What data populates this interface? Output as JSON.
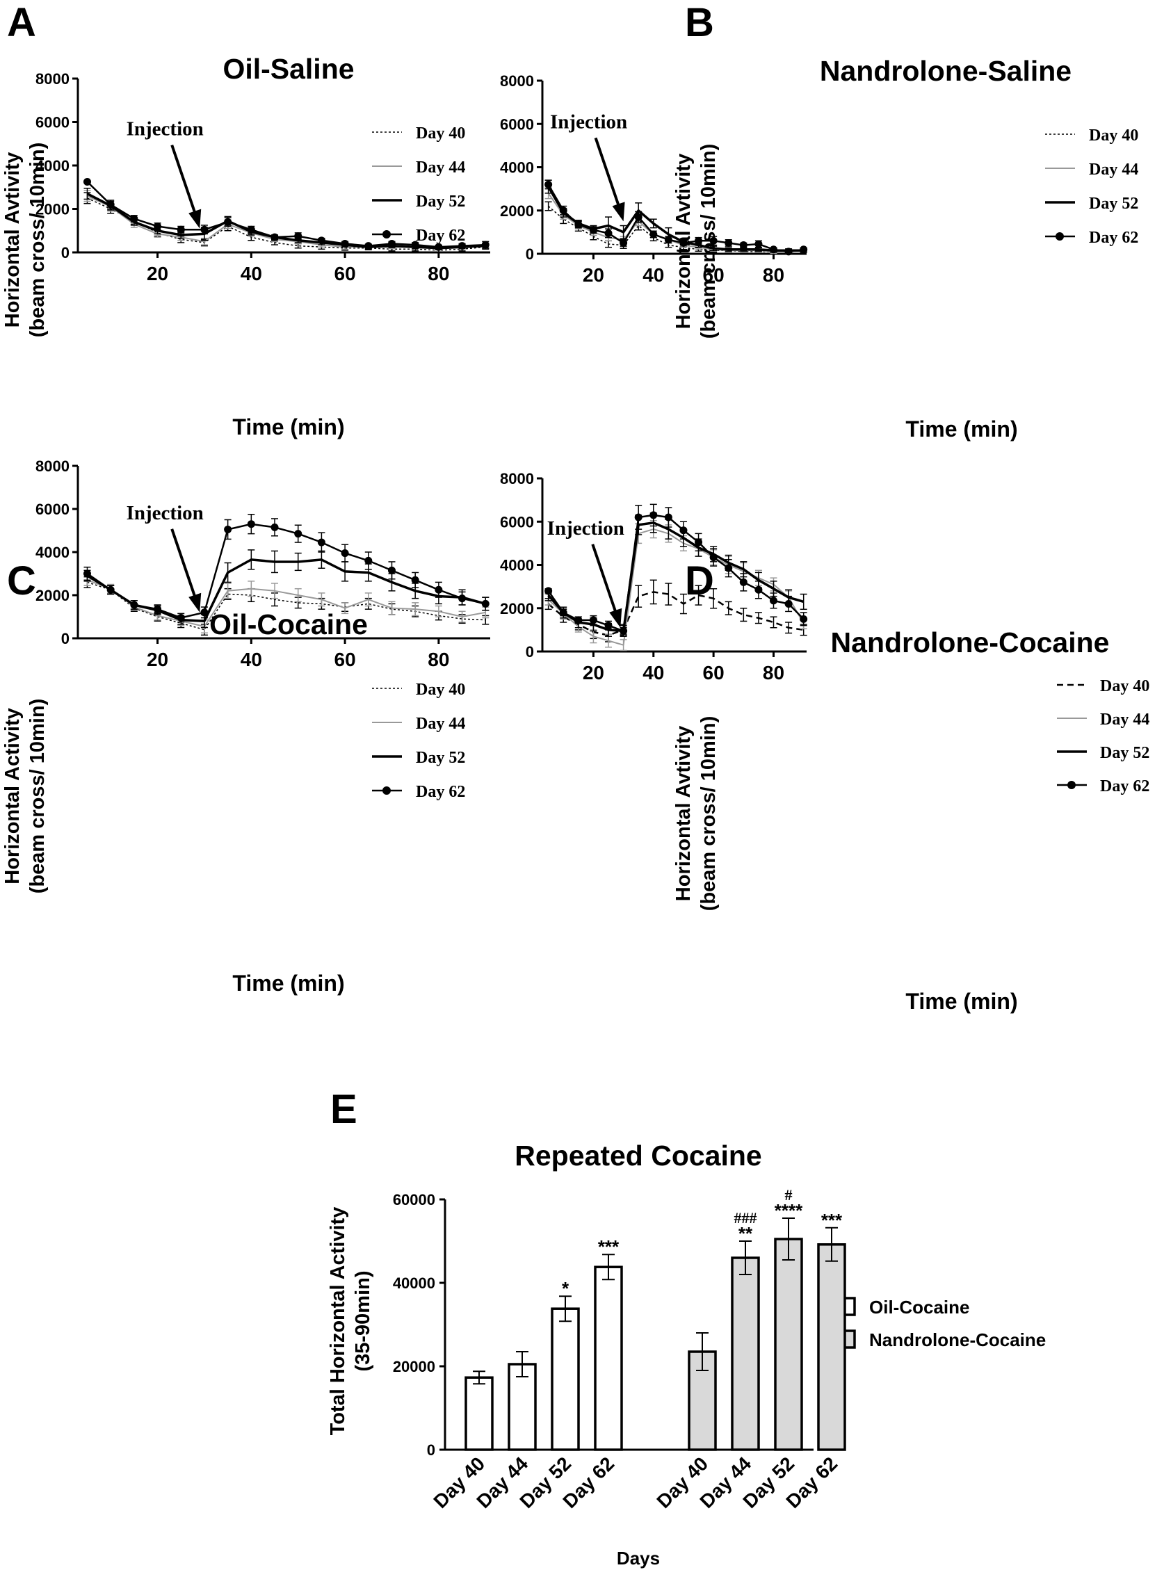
{
  "chart_data": [
    {
      "id": "A",
      "type": "line",
      "panel_letter": "A",
      "title": "Oil-Saline",
      "ylabel_line1": "Horizontal Avtivity",
      "ylabel_line2": "(beam cross/ 10min)",
      "xlabel": "Time (min)",
      "xlim": [
        3,
        91
      ],
      "ylim": [
        0,
        8000
      ],
      "yticks": [
        0,
        2000,
        4000,
        6000,
        8000
      ],
      "xticks": [
        20,
        40,
        60,
        80
      ],
      "x": [
        5,
        10,
        15,
        20,
        25,
        30,
        35,
        40,
        45,
        50,
        55,
        60,
        65,
        70,
        75,
        80,
        85,
        90
      ],
      "annotation": {
        "text": "Injection",
        "x": 29,
        "y": 1100
      },
      "series": [
        {
          "name": "Day 40",
          "style": "dotted",
          "values": [
            2500,
            2000,
            1450,
            900,
            600,
            450,
            1200,
            700,
            450,
            300,
            250,
            200,
            200,
            150,
            150,
            100,
            150,
            250
          ],
          "err": [
            250,
            200,
            150,
            150,
            150,
            150,
            200,
            150,
            100,
            100,
            100,
            100,
            80,
            80,
            80,
            80,
            80,
            100
          ]
        },
        {
          "name": "Day 44",
          "style": "gray",
          "values": [
            2600,
            2100,
            1300,
            850,
            700,
            500,
            1300,
            900,
            600,
            500,
            350,
            250,
            250,
            250,
            250,
            200,
            250,
            300
          ],
          "err": [
            250,
            200,
            150,
            150,
            150,
            150,
            200,
            150,
            100,
            100,
            100,
            100,
            80,
            80,
            80,
            80,
            80,
            100
          ]
        },
        {
          "name": "Day 52",
          "style": "thick",
          "values": [
            2700,
            2150,
            1400,
            1000,
            800,
            850,
            1450,
            950,
            700,
            550,
            450,
            350,
            250,
            300,
            250,
            200,
            250,
            300
          ],
          "err": [
            250,
            200,
            150,
            150,
            150,
            300,
            200,
            150,
            100,
            100,
            100,
            100,
            80,
            80,
            80,
            80,
            80,
            100
          ]
        },
        {
          "name": "Day 62",
          "style": "dots",
          "values": [
            3250,
            2200,
            1550,
            1200,
            1050,
            1050,
            1400,
            1050,
            700,
            750,
            550,
            400,
            300,
            400,
            350,
            250,
            300,
            350
          ],
          "err": [
            0,
            200,
            150,
            150,
            150,
            200,
            200,
            150,
            100,
            150,
            100,
            100,
            80,
            100,
            100,
            80,
            100,
            150
          ]
        }
      ]
    },
    {
      "id": "B",
      "type": "line",
      "panel_letter": "B",
      "title": "Nandrolone-Saline",
      "ylabel_line1": "Horizontal Avtivity",
      "ylabel_line2": "(beam cross/ 10min)",
      "xlabel": "Time (min)",
      "xlim": [
        3,
        91
      ],
      "ylim": [
        0,
        8000
      ],
      "yticks": [
        0,
        2000,
        4000,
        6000,
        8000
      ],
      "xticks": [
        20,
        40,
        60,
        80
      ],
      "x": [
        5,
        10,
        15,
        20,
        25,
        30,
        35,
        40,
        45,
        50,
        55,
        60,
        65,
        70,
        75,
        80,
        85,
        90
      ],
      "annotation": {
        "text": "Injection",
        "x": 30,
        "y": 1500
      },
      "series": [
        {
          "name": "Day 40",
          "style": "dotted",
          "values": [
            2200,
            1600,
            1200,
            800,
            450,
            400,
            1300,
            750,
            400,
            300,
            200,
            150,
            150,
            100,
            100,
            100,
            100,
            150
          ],
          "err": [
            200,
            200,
            150,
            150,
            150,
            150,
            200,
            150,
            100,
            100,
            80,
            80,
            80,
            80,
            80,
            80,
            80,
            80
          ]
        },
        {
          "name": "Day 44",
          "style": "gray",
          "values": [
            2800,
            1800,
            1300,
            1000,
            750,
            650,
            1500,
            900,
            650,
            400,
            300,
            200,
            150,
            150,
            150,
            100,
            100,
            150
          ],
          "err": [
            250,
            200,
            150,
            150,
            150,
            150,
            200,
            150,
            100,
            100,
            80,
            80,
            80,
            80,
            80,
            80,
            80,
            80
          ]
        },
        {
          "name": "Day 52",
          "style": "thick",
          "values": [
            3100,
            1900,
            1400,
            1150,
            1300,
            1000,
            2000,
            1400,
            900,
            550,
            400,
            250,
            200,
            200,
            200,
            150,
            150,
            150
          ],
          "err": [
            300,
            200,
            150,
            150,
            400,
            300,
            350,
            200,
            300,
            150,
            100,
            100,
            80,
            80,
            80,
            80,
            80,
            80
          ]
        },
        {
          "name": "Day 62",
          "style": "dots",
          "values": [
            3200,
            2000,
            1350,
            1100,
            950,
            500,
            1700,
            900,
            650,
            500,
            600,
            600,
            500,
            400,
            450,
            200,
            100,
            200
          ],
          "err": [
            200,
            200,
            150,
            150,
            200,
            150,
            250,
            150,
            150,
            100,
            150,
            200,
            150,
            100,
            150,
            80,
            80,
            80
          ]
        }
      ]
    },
    {
      "id": "C",
      "type": "line",
      "panel_letter": "C",
      "title": "Oil-Cocaine",
      "ylabel_line1": "Horizontal Activity",
      "ylabel_line2": "(beam cross/ 10min)",
      "xlabel": "Time (min)",
      "xlim": [
        3,
        91
      ],
      "ylim": [
        0,
        8000
      ],
      "yticks": [
        0,
        2000,
        4000,
        6000,
        8000
      ],
      "xticks": [
        20,
        40,
        60,
        80
      ],
      "x": [
        5,
        10,
        15,
        20,
        25,
        30,
        35,
        40,
        45,
        50,
        55,
        60,
        65,
        70,
        75,
        80,
        85,
        90
      ],
      "annotation": {
        "text": "Injection",
        "x": 29,
        "y": 1200
      },
      "series": [
        {
          "name": "Day 40",
          "style": "dotted",
          "values": [
            2600,
            2250,
            1400,
            1000,
            700,
            400,
            2050,
            2000,
            1800,
            1650,
            1600,
            1450,
            1600,
            1350,
            1250,
            1050,
            900,
            850
          ],
          "err": [
            250,
            200,
            150,
            200,
            200,
            250,
            250,
            300,
            300,
            250,
            250,
            200,
            250,
            250,
            250,
            200,
            200,
            200
          ]
        },
        {
          "name": "Day 44",
          "style": "gray",
          "values": [
            2700,
            2300,
            1450,
            1050,
            800,
            550,
            2200,
            2300,
            2200,
            2000,
            1800,
            1400,
            1800,
            1400,
            1350,
            1250,
            1000,
            1200
          ],
          "err": [
            250,
            200,
            150,
            200,
            200,
            300,
            350,
            350,
            350,
            300,
            300,
            250,
            300,
            300,
            300,
            250,
            250,
            250
          ]
        },
        {
          "name": "Day 52",
          "style": "thick",
          "values": [
            2900,
            2250,
            1550,
            1300,
            850,
            800,
            3050,
            3650,
            3550,
            3550,
            3650,
            3100,
            3050,
            2600,
            2200,
            1950,
            1900,
            1600
          ],
          "err": [
            250,
            200,
            200,
            200,
            200,
            300,
            450,
            450,
            500,
            400,
            400,
            450,
            400,
            400,
            350,
            350,
            350,
            300
          ]
        },
        {
          "name": "Day 62",
          "style": "dots",
          "values": [
            3000,
            2250,
            1550,
            1350,
            950,
            1200,
            5050,
            5300,
            5150,
            4850,
            4450,
            3950,
            3600,
            3150,
            2700,
            2250,
            1850,
            1600
          ],
          "err": [
            300,
            200,
            200,
            200,
            200,
            250,
            450,
            450,
            400,
            400,
            450,
            400,
            400,
            400,
            350,
            350,
            300,
            300
          ]
        }
      ]
    },
    {
      "id": "D",
      "type": "line",
      "panel_letter": "D",
      "title": "Nandrolone-Cocaine",
      "ylabel_line1": "Horizontal Avtivity",
      "ylabel_line2": "(beam cross/ 10min)",
      "xlabel": "Time (min)",
      "xlim": [
        3,
        91
      ],
      "ylim": [
        0,
        8000
      ],
      "yticks": [
        0,
        2000,
        4000,
        6000,
        8000
      ],
      "xticks": [
        20,
        40,
        60,
        80
      ],
      "x": [
        5,
        10,
        15,
        20,
        25,
        30,
        35,
        40,
        45,
        50,
        55,
        60,
        65,
        70,
        75,
        80,
        85,
        90
      ],
      "annotation": {
        "text": "Injection",
        "x": 29,
        "y": 1100
      },
      "series": [
        {
          "name": "Day 40",
          "style": "dashed",
          "values": [
            2200,
            1600,
            1250,
            900,
            750,
            1000,
            2550,
            2750,
            2650,
            2200,
            2600,
            2450,
            2000,
            1700,
            1550,
            1350,
            1100,
            1000
          ],
          "err": [
            250,
            250,
            250,
            300,
            300,
            250,
            500,
            550,
            500,
            450,
            450,
            450,
            300,
            300,
            250,
            250,
            250,
            250
          ]
        },
        {
          "name": "Day 44",
          "style": "gray",
          "values": [
            2400,
            1750,
            1150,
            700,
            500,
            300,
            5450,
            5650,
            5450,
            5000,
            4750,
            4350,
            4000,
            3700,
            3400,
            3100,
            2500,
            1300
          ],
          "err": [
            250,
            250,
            250,
            300,
            300,
            250,
            450,
            400,
            400,
            350,
            350,
            350,
            400,
            400,
            350,
            300,
            300,
            250
          ]
        },
        {
          "name": "Day 52",
          "style": "thick",
          "values": [
            2600,
            1800,
            1350,
            1250,
            1000,
            950,
            5850,
            5950,
            5650,
            5250,
            4800,
            4500,
            4100,
            3800,
            3300,
            2900,
            2500,
            2300
          ],
          "err": [
            250,
            250,
            250,
            300,
            300,
            250,
            450,
            450,
            450,
            400,
            400,
            350,
            350,
            350,
            350,
            350,
            350,
            350
          ]
        },
        {
          "name": "Day 62",
          "style": "dots",
          "values": [
            2800,
            1800,
            1450,
            1450,
            1200,
            950,
            6200,
            6300,
            6200,
            5600,
            5050,
            4350,
            3850,
            3200,
            2850,
            2350,
            2200,
            1500
          ],
          "err": [
            100,
            150,
            150,
            200,
            200,
            150,
            550,
            500,
            450,
            400,
            400,
            400,
            400,
            400,
            400,
            350,
            350,
            300
          ]
        }
      ]
    },
    {
      "id": "E",
      "type": "bar",
      "panel_letter": "E",
      "title": "Repeated Cocaine",
      "ylabel_line1": "Total Horizontal Activity",
      "ylabel_line2": "(35-90min)",
      "xlabel": "Days",
      "ylim": [
        0,
        60000
      ],
      "yticks": [
        0,
        20000,
        40000,
        60000
      ],
      "categories": [
        "Day 40",
        "Day 44",
        "Day 52",
        "Day 62"
      ],
      "series": [
        {
          "name": "Oil-Cocaine",
          "color": "#ffffff",
          "values": [
            17300,
            20500,
            33800,
            43800
          ],
          "err": [
            1500,
            3000,
            3000,
            3000
          ],
          "stars": [
            "",
            "",
            "*",
            "***"
          ],
          "hashes": [
            "",
            "",
            "",
            ""
          ]
        },
        {
          "name": "Nandrolone-Cocaine",
          "color": "#d9d9d9",
          "values": [
            23500,
            46000,
            50500,
            49200
          ],
          "err": [
            4500,
            4000,
            5000,
            4000
          ],
          "stars": [
            "",
            "**",
            "****",
            "***"
          ],
          "hashes": [
            "",
            "###",
            "#",
            ""
          ]
        }
      ]
    }
  ]
}
